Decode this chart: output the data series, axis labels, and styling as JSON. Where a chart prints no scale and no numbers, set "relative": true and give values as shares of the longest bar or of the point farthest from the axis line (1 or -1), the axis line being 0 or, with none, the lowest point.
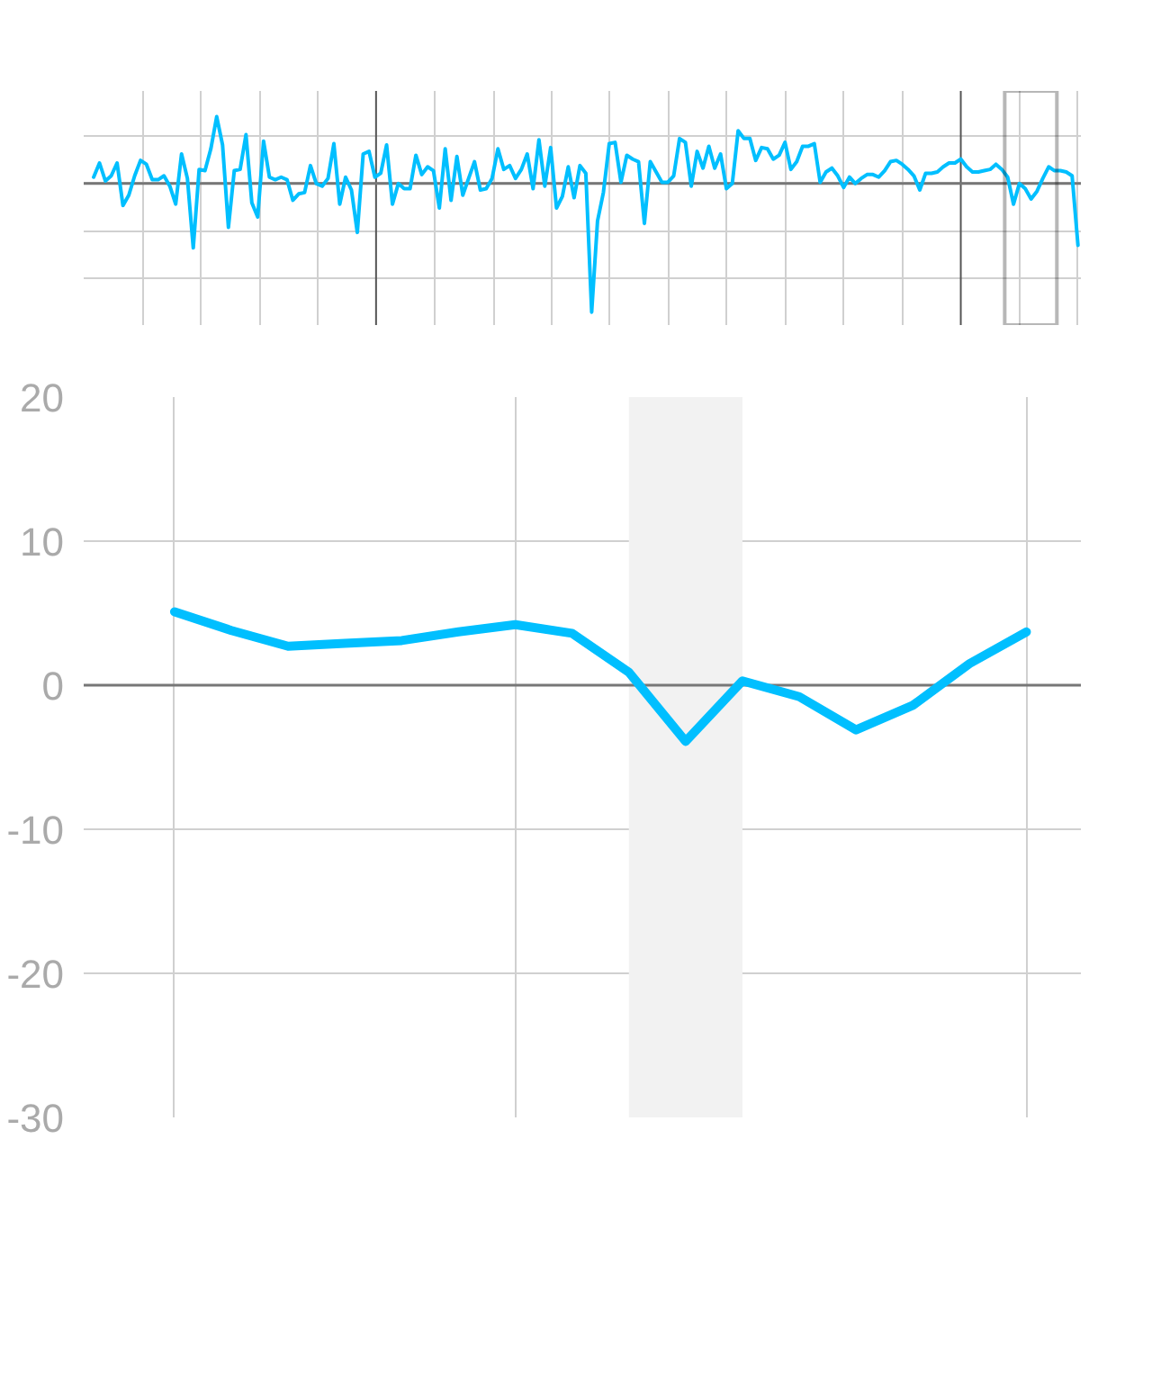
{
  "chart_data": [
    {
      "type": "line",
      "relative": true,
      "grid": true,
      "tick_labels": false,
      "categories": [
        null,
        null,
        null,
        null,
        null,
        null,
        null,
        null,
        null,
        null,
        null,
        null,
        null,
        null,
        null,
        null,
        null,
        null,
        null,
        null,
        null,
        null,
        null,
        null,
        null,
        null,
        null,
        null,
        null,
        null,
        null,
        null,
        null,
        null,
        null,
        null,
        null,
        null,
        null,
        null,
        null,
        null,
        null,
        null,
        null,
        null,
        null,
        null,
        null,
        null,
        null,
        null,
        null,
        null,
        null,
        null,
        null,
        null,
        null,
        null,
        null,
        null,
        null,
        null,
        null,
        null,
        null,
        null,
        null,
        null,
        null,
        null,
        null,
        null,
        null,
        null,
        null,
        null,
        null,
        null,
        null,
        null,
        null,
        null,
        null,
        null,
        null,
        null,
        null,
        null,
        null,
        null,
        null,
        null,
        null,
        null,
        null,
        null,
        null,
        null,
        null,
        null,
        null,
        null,
        null,
        null,
        null,
        null,
        null,
        null,
        null,
        null,
        null,
        null,
        null,
        null,
        null,
        null,
        null,
        null,
        null,
        null,
        null,
        null,
        null,
        null,
        null,
        null,
        null,
        null,
        null,
        null,
        null,
        null,
        null,
        null,
        null,
        null,
        null,
        null,
        null,
        null,
        null,
        null,
        null,
        null,
        null,
        null,
        null,
        null,
        null,
        null,
        null,
        null,
        null,
        null,
        null,
        null,
        null,
        null,
        null,
        null,
        null,
        null,
        null,
        null,
        null,
        null,
        null
      ],
      "ref_lines": [
        {
          "axis": "y",
          "value": 0,
          "color": "#777777"
        }
      ],
      "series": [
        {
          "color": "#00bfff",
          "values": [
            0.05,
            0.16,
            0.02,
            0.06,
            0.16,
            -0.17,
            -0.09,
            0.06,
            0.18,
            0.15,
            0.03,
            0.03,
            0.06,
            -0.02,
            -0.16,
            0.23,
            0.04,
            -0.5,
            0.11,
            0.1,
            0.27,
            0.52,
            0.3,
            -0.34,
            0.1,
            0.11,
            0.38,
            -0.15,
            -0.26,
            0.33,
            0.05,
            0.03,
            0.05,
            0.03,
            -0.13,
            -0.08,
            -0.07,
            0.14,
            0,
            -0.02,
            0.04,
            0.31,
            -0.16,
            0.05,
            -0.05,
            -0.38,
            0.23,
            0.25,
            0.05,
            0.08,
            0.3,
            -0.16,
            0,
            -0.04,
            -0.04,
            0.22,
            0.07,
            0.13,
            0.1,
            -0.19,
            0.27,
            -0.13,
            0.21,
            -0.09,
            0.04,
            0.17,
            -0.05,
            -0.04,
            0.04,
            0.27,
            0.11,
            0.14,
            0.04,
            0.11,
            0.23,
            -0.04,
            0.34,
            -0.02,
            0.28,
            -0.19,
            -0.1,
            0.13,
            -0.11,
            0.14,
            0.08,
            -1,
            -0.29,
            -0.07,
            0.31,
            0.32,
            0.01,
            0.22,
            0.19,
            0.17,
            -0.31,
            0.17,
            0.09,
            0.01,
            0.01,
            0.06,
            0.35,
            0.32,
            -0.02,
            0.25,
            0.12,
            0.29,
            0.12,
            0.23,
            -0.04,
            0,
            0.41,
            0.35,
            0.35,
            0.18,
            0.28,
            0.27,
            0.19,
            0.22,
            0.32,
            0.11,
            0.17,
            0.29,
            0.29,
            0.31,
            0.01,
            0.09,
            0.12,
            0.06,
            -0.03,
            0.05,
            0,
            0.04,
            0.07,
            0.07,
            0.05,
            0.1,
            0.17,
            0.18,
            0.15,
            0.11,
            0.06,
            -0.05,
            0.08,
            0.08,
            0.09,
            0.13,
            0.16,
            0.16,
            0.19,
            0.13,
            0.09,
            0.09,
            0.1,
            0.11,
            0.15,
            0.11,
            0.05,
            -0.16,
            0,
            -0.04,
            -0.12,
            -0.06,
            0.04,
            0.13,
            0.1,
            0.1,
            0.09,
            0.06,
            -0.48
          ]
        }
      ]
    },
    {
      "type": "line",
      "grid": true,
      "tick_labels": "y",
      "ylim": [
        -30,
        20
      ],
      "yticks": [
        -30,
        -20,
        -10,
        0,
        10,
        20
      ],
      "categories": [
        null,
        null,
        null,
        null,
        null,
        null,
        null,
        null,
        null,
        null,
        null,
        null,
        null,
        null,
        null,
        null
      ],
      "ref_lines": [
        {
          "axis": "y",
          "value": 0,
          "color": "#777777"
        }
      ],
      "series": [
        {
          "color": "#00bfff",
          "values": [
            5.1,
            3.8,
            2.7,
            2.9,
            3.1,
            3.7,
            4.2,
            3.6,
            0.9,
            -3.9,
            0.3,
            -0.8,
            -3.1,
            -1.4,
            1.5,
            3.7
          ]
        }
      ]
    }
  ]
}
